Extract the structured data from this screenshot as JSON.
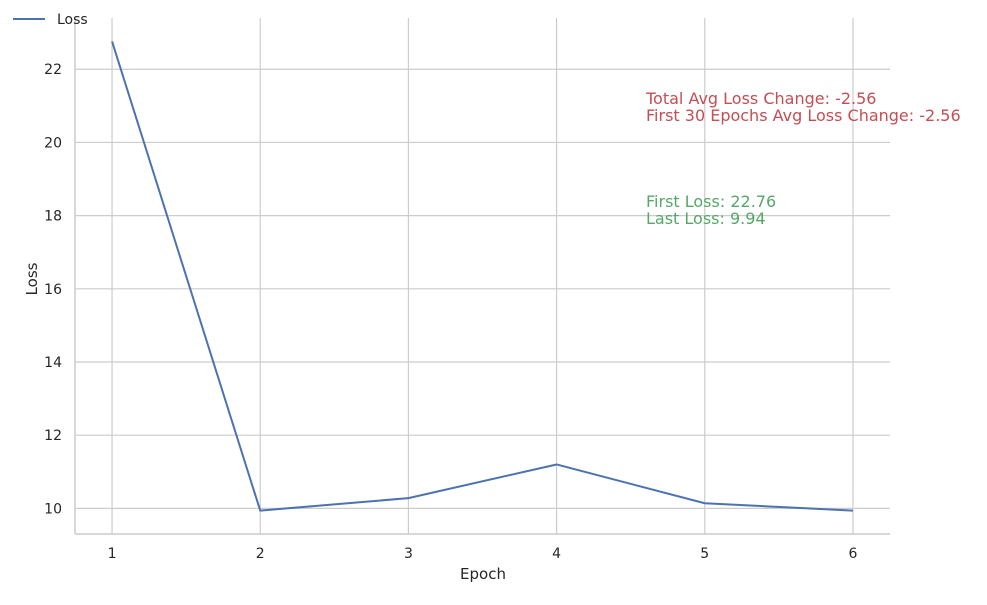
{
  "chart_data": {
    "type": "line",
    "title": "",
    "xlabel": "Epoch",
    "ylabel": "Loss",
    "x": [
      1,
      2,
      3,
      4,
      5,
      6
    ],
    "xticks": [
      "1",
      "2",
      "3",
      "4",
      "5",
      "6"
    ],
    "yticks": [
      "10",
      "12",
      "14",
      "16",
      "18",
      "20",
      "22"
    ],
    "xlim": [
      0.75,
      6.25
    ],
    "ylim": [
      9.3,
      23.4
    ],
    "grid": true,
    "legend_position": "top-left",
    "series": [
      {
        "name": "Loss",
        "color": "#4c72b0",
        "values": [
          22.76,
          9.94,
          10.28,
          11.2,
          10.14,
          9.94
        ]
      }
    ],
    "annotations": {
      "red_color": "#c44e52",
      "green_color": "#55a868",
      "total_avg_change": "Total Avg Loss Change: -2.56",
      "first30_avg_change": "First 30 Epochs Avg Loss Change: -2.56",
      "first_loss": "First Loss: 22.76",
      "last_loss": "Last Loss: 9.94"
    }
  }
}
